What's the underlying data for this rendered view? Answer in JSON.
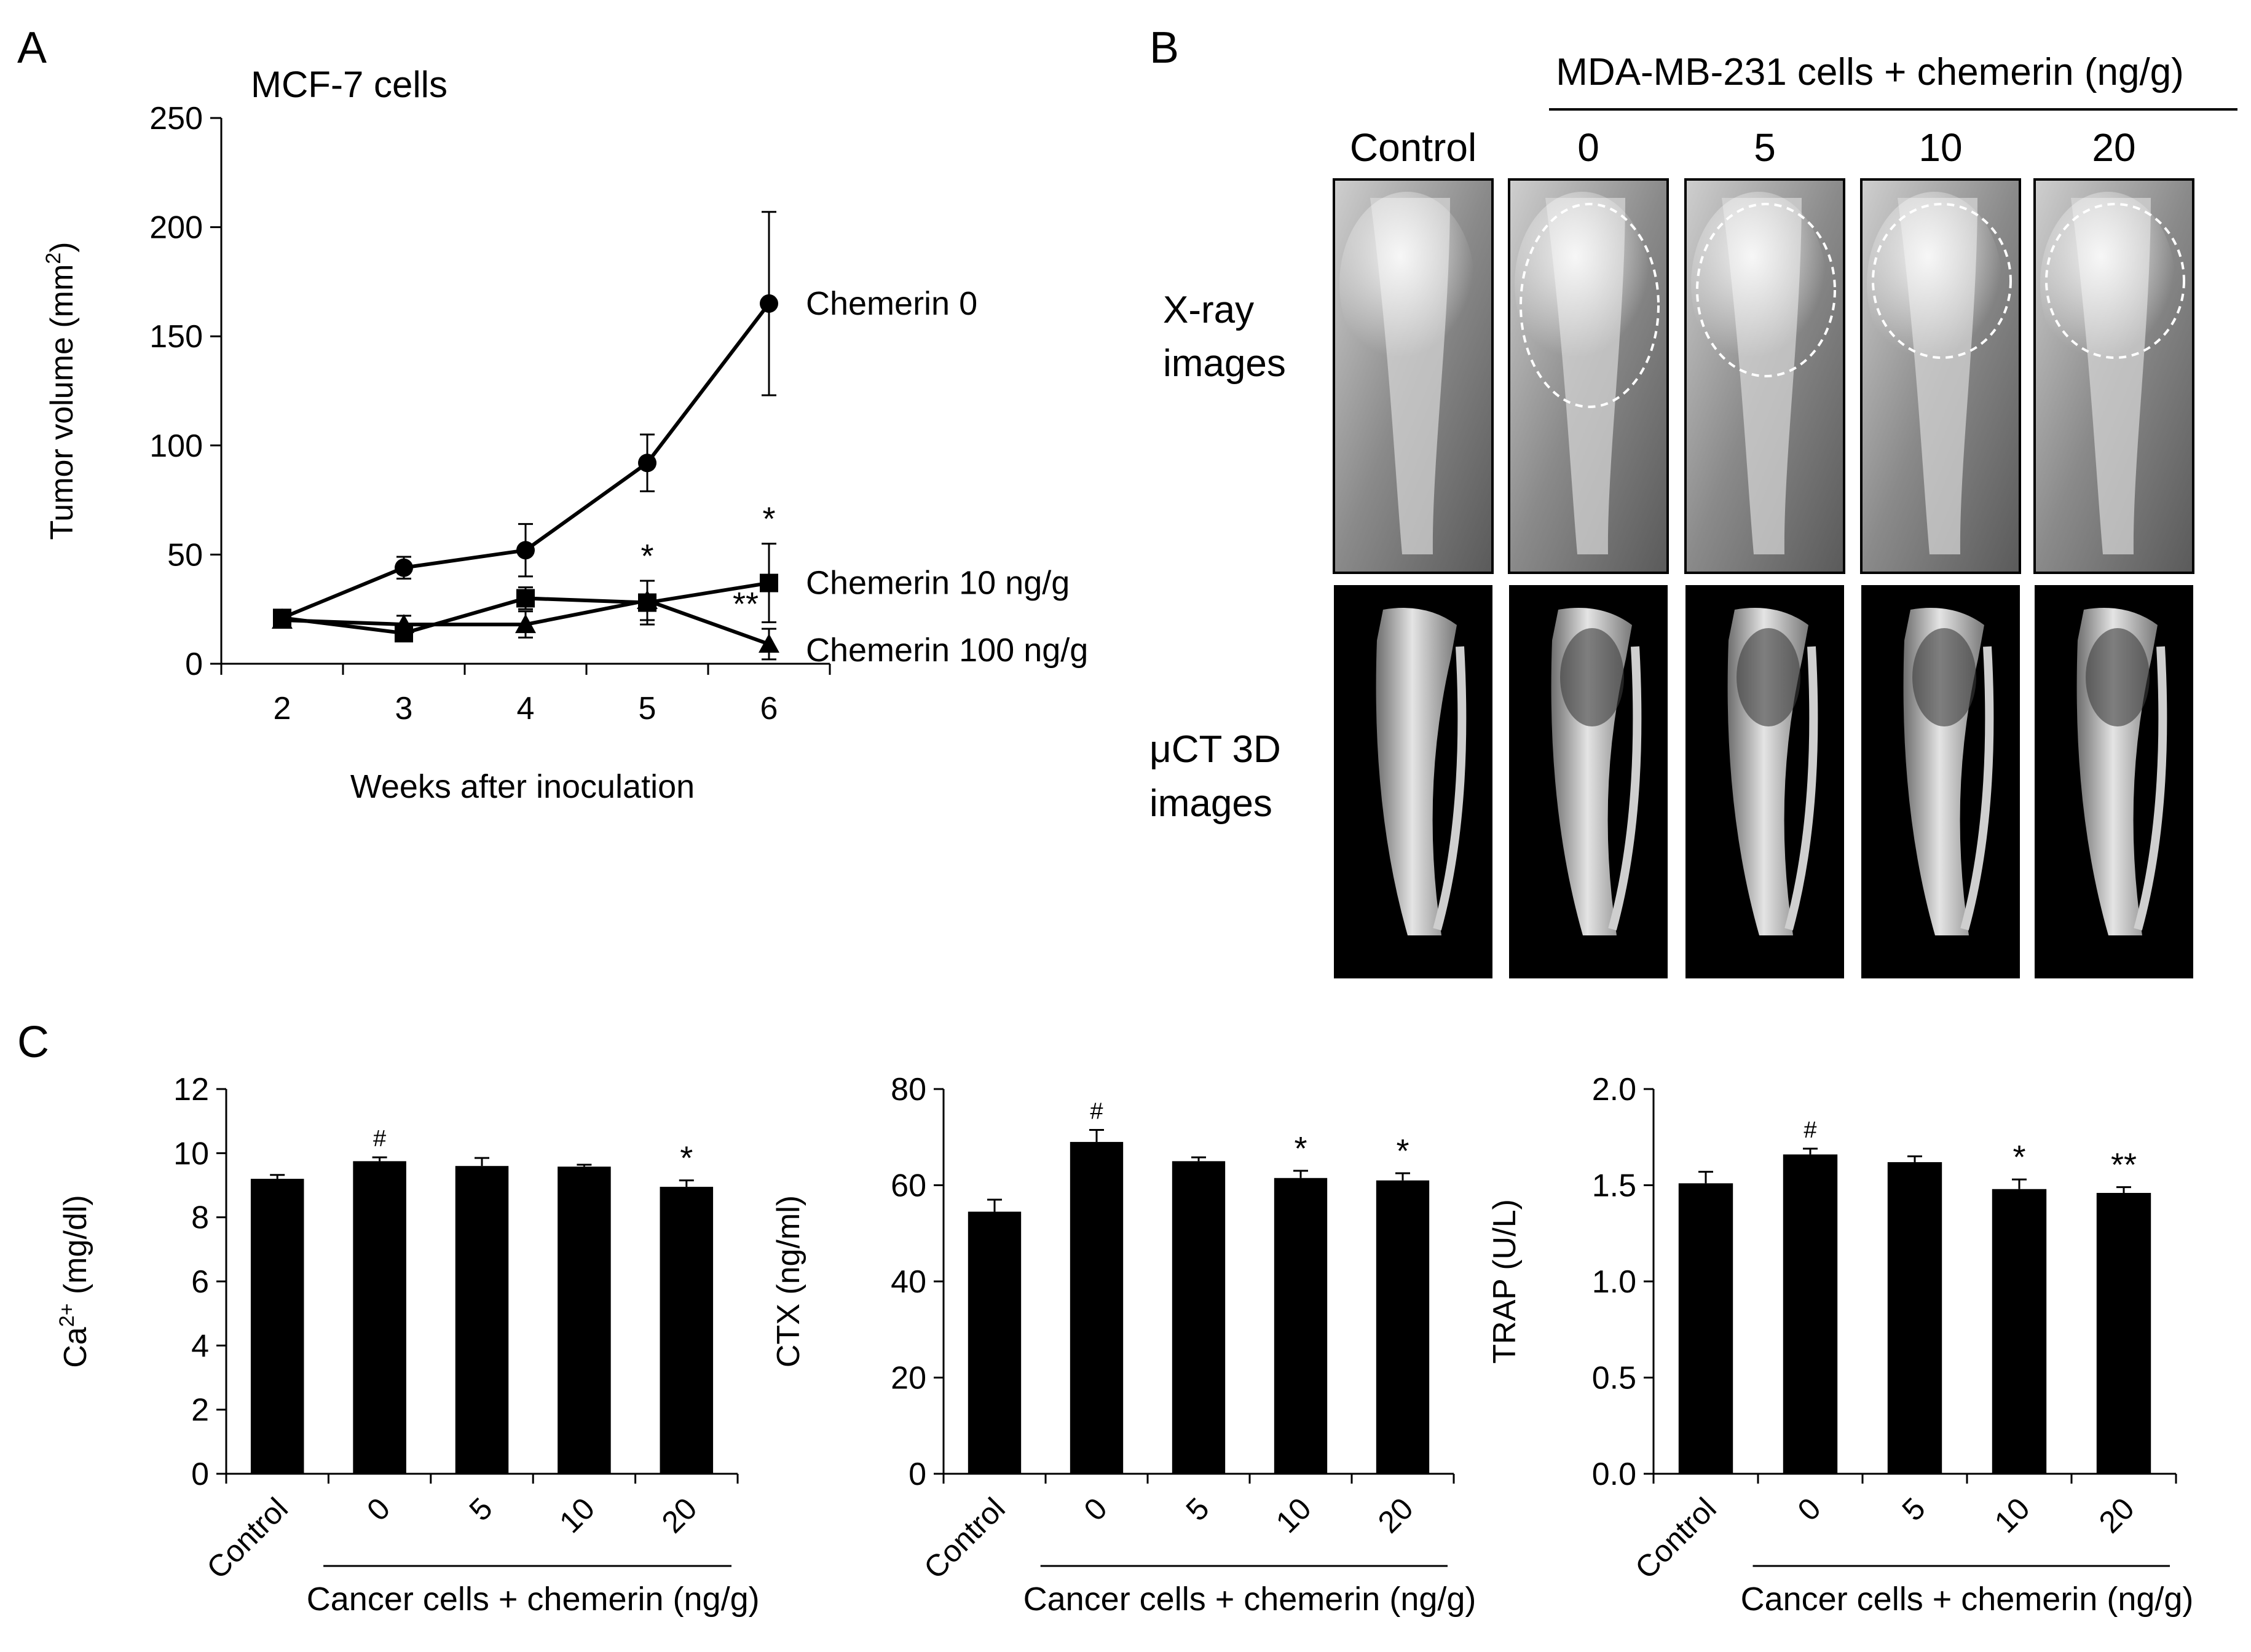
{
  "panel_labels": {
    "a": "A",
    "b": "B",
    "c": "C"
  },
  "panelA": {
    "title": "MCF-7 cells",
    "ylabel_main": "Tumor volume (mm",
    "ylabel_sup": "2",
    "ylabel_end": ")",
    "xlabel": "Weeks after inoculation"
  },
  "panelB": {
    "header": "MDA-MB-231 cells + chemerin (ng/g)",
    "columns": [
      "Control",
      "0",
      "5",
      "10",
      "20"
    ],
    "row1_label": [
      "X-ray",
      "images"
    ],
    "row2_label": [
      "μCT 3D",
      "images"
    ]
  },
  "panelC": {
    "xlabel": "Cancer cells + chemerin (ng/g)",
    "ylabel_ca_prefix": "Ca",
    "ylabel_ca_sup": "2+",
    "ylabel_ca_suffix": " (mg/dl)",
    "ylabel_ctx": "CTX (ng/ml)",
    "ylabel_trap": "TRAP (U/L)"
  },
  "chart_data": [
    {
      "id": "A",
      "type": "line",
      "title": "MCF-7 cells",
      "xlabel": "Weeks after inoculation",
      "ylabel": "Tumor volume (mm2)",
      "x": [
        2,
        3,
        4,
        5,
        6
      ],
      "xlim": [
        1.5,
        6.5
      ],
      "ylim": [
        0,
        250
      ],
      "yticks": [
        0,
        50,
        100,
        150,
        200,
        250
      ],
      "series": [
        {
          "name": "Chemerin 0",
          "marker": "circle",
          "values": [
            21,
            44,
            52,
            92,
            165
          ],
          "errors": [
            3,
            5,
            12,
            13,
            42
          ],
          "annotations": [
            "",
            "",
            "",
            "",
            ""
          ]
        },
        {
          "name": "Chemerin 10 ng/g",
          "marker": "square",
          "values": [
            21,
            14,
            30,
            28,
            37
          ],
          "errors": [
            3,
            3,
            5,
            10,
            18
          ],
          "annotations": [
            "",
            "",
            "",
            "*",
            "*"
          ]
        },
        {
          "name": "Chemerin 100 ng/g",
          "marker": "triangle",
          "values": [
            20,
            18,
            18,
            29,
            9
          ],
          "errors": [
            3,
            4,
            6,
            9,
            7
          ],
          "annotations": [
            "",
            "",
            "",
            "",
            "**"
          ]
        }
      ]
    },
    {
      "id": "C1",
      "type": "bar",
      "ylabel": "Ca2+ (mg/dl)",
      "categories": [
        "Control",
        "0",
        "5",
        "10",
        "20"
      ],
      "values": [
        9.2,
        9.75,
        9.6,
        9.58,
        8.95
      ],
      "errors": [
        0.12,
        0.12,
        0.25,
        0.06,
        0.2
      ],
      "annotations": [
        "",
        "#",
        "",
        "",
        "*"
      ],
      "ylim": [
        0,
        12
      ],
      "yticks": [
        0,
        2,
        4,
        6,
        8,
        10,
        12
      ],
      "ytick_labels": [
        "0",
        "2",
        "4",
        "6",
        "8",
        "10",
        "12"
      ],
      "xlabel": "Cancer cells + chemerin (ng/g)"
    },
    {
      "id": "C2",
      "type": "bar",
      "ylabel": "CTX (ng/ml)",
      "categories": [
        "Control",
        "0",
        "5",
        "10",
        "20"
      ],
      "values": [
        54.5,
        69,
        65,
        61.5,
        61
      ],
      "errors": [
        2.5,
        2.5,
        0.8,
        1.5,
        1.5
      ],
      "annotations": [
        "",
        "#",
        "",
        "*",
        "*"
      ],
      "ylim": [
        0,
        80
      ],
      "yticks": [
        0,
        20,
        40,
        60,
        80
      ],
      "ytick_labels": [
        "0",
        "20",
        "40",
        "60",
        "80"
      ],
      "xlabel": "Cancer cells + chemerin (ng/g)"
    },
    {
      "id": "C3",
      "type": "bar",
      "ylabel": "TRAP (U/L)",
      "categories": [
        "Control",
        "0",
        "5",
        "10",
        "20"
      ],
      "values": [
        1.51,
        1.66,
        1.62,
        1.48,
        1.46
      ],
      "errors": [
        0.06,
        0.03,
        0.03,
        0.05,
        0.03
      ],
      "annotations": [
        "",
        "#",
        "",
        "*",
        "**"
      ],
      "ylim": [
        0,
        2
      ],
      "yticks": [
        0,
        0.5,
        1,
        1.5,
        2
      ],
      "ytick_labels": [
        "0.0",
        "0.5",
        "1.0",
        "1.5",
        "2.0"
      ],
      "xlabel": "Cancer cells + chemerin (ng/g)"
    }
  ]
}
